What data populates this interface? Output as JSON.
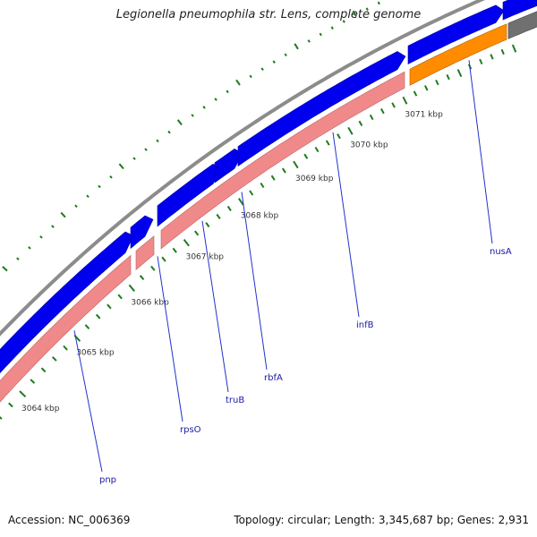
{
  "title": "Legionella pneumophila str. Lens, complete genome",
  "footer": {
    "accession": "Accession: NC_006369",
    "stats": "Topology: circular; Length: 3,345,687 bp; Genes: 2,931"
  },
  "colors": {
    "forward_cds": "#0000ee",
    "reverse_cds": "#f08a8a",
    "orange_feature": "#ff8c00",
    "dark_feature": "#707070",
    "backbone": "#8c8c8c",
    "ticks": "#1f7a1f",
    "label_line": "#2233cc"
  },
  "ruler": {
    "unit": "kbp",
    "labels": [
      {
        "kbp": 3064,
        "text": "3064 kbp"
      },
      {
        "kbp": 3065,
        "text": "3065 kbp"
      },
      {
        "kbp": 3066,
        "text": "3066 kbp"
      },
      {
        "kbp": 3067,
        "text": "3067 kbp"
      },
      {
        "kbp": 3068,
        "text": "3068 kbp"
      },
      {
        "kbp": 3069,
        "text": "3069 kbp"
      },
      {
        "kbp": 3070,
        "text": "3070 kbp"
      },
      {
        "kbp": 3071,
        "text": "3071 kbp"
      }
    ]
  },
  "gene_labels": [
    {
      "name": "pnp"
    },
    {
      "name": "rpsO"
    },
    {
      "name": "truB"
    },
    {
      "name": "rbfA"
    },
    {
      "name": "infB"
    },
    {
      "name": "nusA"
    }
  ]
}
